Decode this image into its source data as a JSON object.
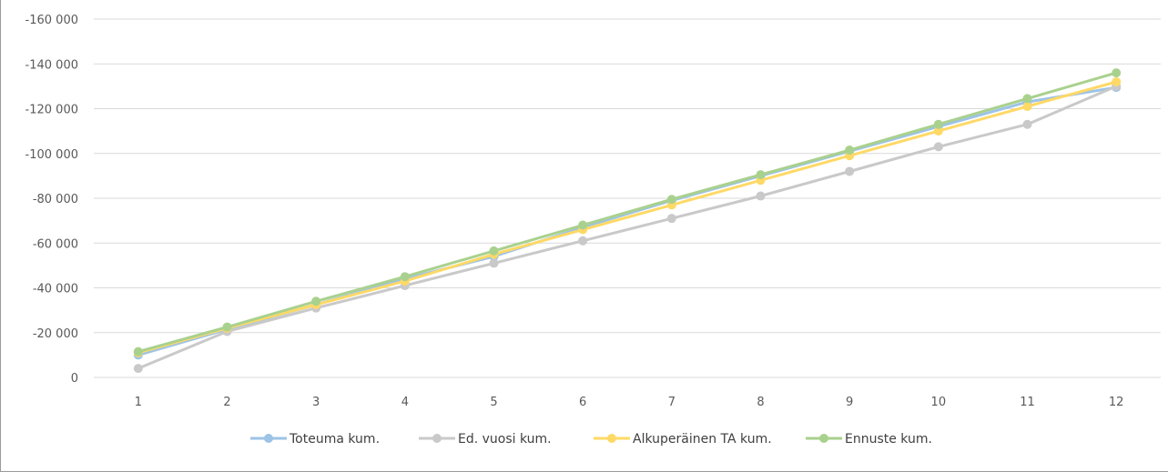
{
  "chart_data": {
    "type": "line",
    "title": "",
    "xlabel": "",
    "ylabel": "",
    "categories": [
      "1",
      "2",
      "3",
      "4",
      "5",
      "6",
      "7",
      "8",
      "9",
      "10",
      "11",
      "12"
    ],
    "ylim": [
      0,
      -160000
    ],
    "y_ticks": [
      0,
      -20000,
      -40000,
      -60000,
      -80000,
      -100000,
      -120000,
      -140000,
      -160000
    ],
    "y_tick_labels": [
      "0",
      "-20 000",
      "-40 000",
      "-60 000",
      "-80 000",
      "-100 000",
      "-120 000",
      "-140 000",
      "-160 000"
    ],
    "y_axis_reversed": true,
    "grid": "horizontal",
    "legend": "bottom",
    "series": [
      {
        "name": "Toteuma kum.",
        "color": "#9dc3e6",
        "values": [
          -10000,
          -21500,
          -32500,
          -44000,
          -54000,
          -67000,
          -79000,
          -90000,
          -101000,
          -112000,
          -123000,
          -129500
        ]
      },
      {
        "name": "Ed. vuosi kum.",
        "color": "#c9c9c9",
        "values": [
          -4000,
          -20500,
          -31000,
          -41000,
          -51000,
          -61000,
          -71000,
          -81000,
          -92000,
          -103000,
          -113000,
          -130000
        ]
      },
      {
        "name": "Alkuperäinen TA kum.",
        "color": "#ffd966",
        "values": [
          -11000,
          -22000,
          -32500,
          -43000,
          -55000,
          -66000,
          -77000,
          -88000,
          -99000,
          -110000,
          -121000,
          -132000
        ]
      },
      {
        "name": "Ennuste kum.",
        "color": "#a9d18e",
        "values": [
          -11500,
          -22500,
          -34000,
          -45000,
          -56500,
          -68000,
          -79500,
          -90500,
          -101500,
          -113000,
          -124500,
          -136000
        ]
      }
    ]
  }
}
